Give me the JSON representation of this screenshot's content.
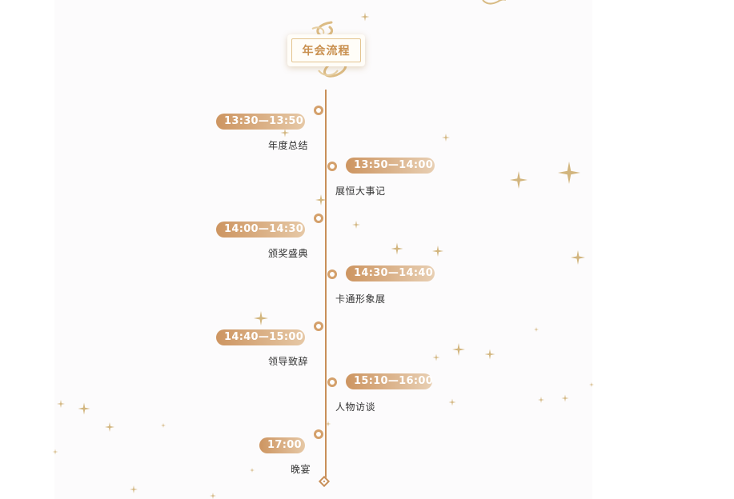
{
  "title": "年会流程",
  "events": [
    {
      "time": "13:30—13:50",
      "name": "年度总结"
    },
    {
      "time": "13:50—14:00",
      "name": "展恒大事记"
    },
    {
      "time": "14:00—14:30",
      "name": "颁奖盛典"
    },
    {
      "time": "14:30—14:40",
      "name": "卡通形象展"
    },
    {
      "time": "14:40—15:00",
      "name": "领导致辞"
    },
    {
      "time": "15:10—16:00",
      "name": "人物访谈"
    },
    {
      "time": "17:00",
      "name": "晚宴"
    }
  ],
  "colors": {
    "accent": "#c88f59",
    "pill_start": "#cd9561",
    "pill_end": "#e6c8a6",
    "star": "#d2b57e"
  }
}
